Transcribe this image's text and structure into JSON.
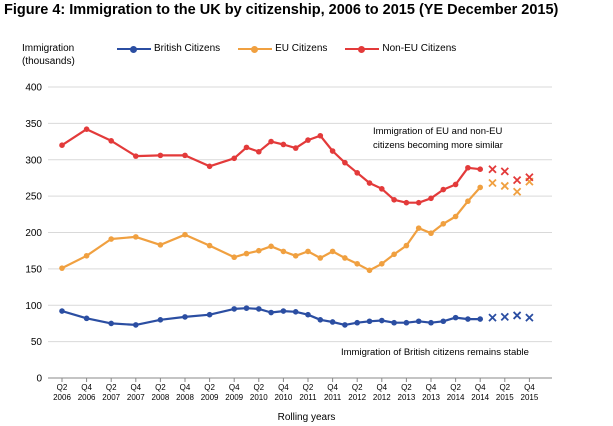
{
  "chart_data": {
    "type": "line",
    "title": "Figure 4: Immigration to the UK by citizenship, 2006 to 2015 (YE December 2015)",
    "ylabel_line1": "Immigration",
    "ylabel_line2": "(thousands)",
    "xlabel": "Rolling years",
    "ylim": [
      0,
      400
    ],
    "yticks": [
      0,
      50,
      100,
      150,
      200,
      250,
      300,
      350,
      400
    ],
    "grid": true,
    "legend_position": "top",
    "x_tick_labels": [
      {
        "q": "Q2",
        "y": "2006"
      },
      {
        "q": "Q4",
        "y": "2006"
      },
      {
        "q": "Q2",
        "y": "2007"
      },
      {
        "q": "Q4",
        "y": "2007"
      },
      {
        "q": "Q2",
        "y": "2008"
      },
      {
        "q": "Q4",
        "y": "2008"
      },
      {
        "q": "Q2",
        "y": "2009"
      },
      {
        "q": "Q4",
        "y": "2009"
      },
      {
        "q": "Q2",
        "y": "2010"
      },
      {
        "q": "Q4",
        "y": "2010"
      },
      {
        "q": "Q2",
        "y": "2011"
      },
      {
        "q": "Q4",
        "y": "2011"
      },
      {
        "q": "Q2",
        "y": "2012"
      },
      {
        "q": "Q4",
        "y": "2012"
      },
      {
        "q": "Q2",
        "y": "2013"
      },
      {
        "q": "Q4",
        "y": "2013"
      },
      {
        "q": "Q2",
        "y": "2014"
      },
      {
        "q": "Q4",
        "y": "2014"
      },
      {
        "q": "Q2",
        "y": "2015"
      },
      {
        "q": "Q4",
        "y": "2015"
      }
    ],
    "series": [
      {
        "name": "British Citizens",
        "color": "#2b4ea2",
        "values": [
          92,
          82,
          75,
          73,
          80,
          84,
          87,
          95,
          96,
          95,
          90,
          92,
          91,
          87,
          80,
          77,
          73,
          76,
          78,
          79,
          76,
          76,
          78,
          76,
          78,
          83,
          81,
          81
        ],
        "x": [
          0,
          1,
          2,
          3,
          4,
          5,
          6,
          7,
          7.5,
          8,
          8.5,
          9,
          9.5,
          10,
          10.5,
          11,
          11.5,
          12,
          12.5,
          13,
          13.5,
          14,
          14.5,
          15,
          15.5,
          16,
          16.5,
          17
        ],
        "provisional_x": [
          17.5,
          18,
          18.5,
          19
        ],
        "provisional_values": [
          83,
          84,
          86,
          83
        ]
      },
      {
        "name": "EU Citizens",
        "color": "#f0a040",
        "values": [
          151,
          168,
          191,
          194,
          183,
          197,
          182,
          166,
          171,
          175,
          181,
          174,
          168,
          174,
          165,
          174,
          165,
          157,
          148,
          157,
          170,
          182,
          206,
          199,
          212,
          222,
          243,
          262
        ],
        "x": [
          0,
          1,
          2,
          3,
          4,
          5,
          6,
          7,
          7.5,
          8,
          8.5,
          9,
          9.5,
          10,
          10.5,
          11,
          11.5,
          12,
          12.5,
          13,
          13.5,
          14,
          14.5,
          15,
          15.5,
          16,
          16.5,
          17
        ],
        "provisional_x": [
          17.5,
          18,
          18.5,
          19
        ],
        "provisional_values": [
          268,
          264,
          256,
          270
        ]
      },
      {
        "name": "Non-EU Citizens",
        "color": "#e33a3a",
        "values": [
          320,
          342,
          326,
          305,
          306,
          306,
          291,
          302,
          317,
          311,
          325,
          321,
          316,
          327,
          333,
          312,
          296,
          282,
          268,
          260,
          245,
          241,
          241,
          247,
          259,
          266,
          289,
          287
        ],
        "x": [
          0,
          1,
          2,
          3,
          4,
          5,
          6,
          7,
          7.5,
          8,
          8.5,
          9,
          9.5,
          10,
          10.5,
          11,
          11.5,
          12,
          12.5,
          13,
          13.5,
          14,
          14.5,
          15,
          15.5,
          16,
          16.5,
          17
        ],
        "provisional_x": [
          17.5,
          18,
          18.5,
          19
        ],
        "provisional_values": [
          287,
          284,
          272,
          276
        ]
      }
    ],
    "annotations": [
      {
        "line1": "Immigration of EU and non-EU",
        "line2": "citizens becoming more similar"
      },
      {
        "line1": "Immigration of British citizens remains stable"
      }
    ]
  }
}
